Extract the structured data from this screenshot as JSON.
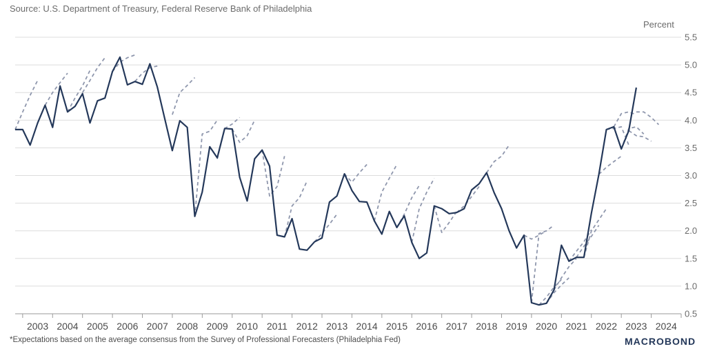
{
  "source": "Source: U.S. Department of Treasury, Federal Reserve Bank of Philadelphia",
  "footnote": "*Expectations based on the average consensus from the Survey of Professional Forecasters (Philadelphia Fed)",
  "brand": "MACROBOND",
  "colors": {
    "actual": "#24385a",
    "forecast": "#8f97ad",
    "grid": "#dcdcdc"
  },
  "chart_data": {
    "type": "line",
    "title": "",
    "xlabel": "",
    "ylabel": "Percent",
    "ylim": [
      0.5,
      5.5
    ],
    "y_ticks": [
      "5.5",
      "5.0",
      "4.5",
      "4.0",
      "3.5",
      "3.0",
      "2.5",
      "2.0",
      "1.5",
      "1.0",
      "0.5"
    ],
    "x_ticks": [
      "2003",
      "2004",
      "2005",
      "2006",
      "2007",
      "2008",
      "2009",
      "2010",
      "2011",
      "2012",
      "2013",
      "2014",
      "2015",
      "2016",
      "2017",
      "2018",
      "2019",
      "2020",
      "2021",
      "2022",
      "2023",
      "2024"
    ],
    "xlim": [
      2002.5,
      2024.75
    ],
    "grid": true,
    "legend": "none",
    "series": [
      {
        "style": "solid",
        "x": [
          2002.5,
          2002.75,
          2003.0,
          2003.25,
          2003.5,
          2003.75,
          2004.0,
          2004.25,
          2004.5,
          2004.75,
          2005.0,
          2005.25,
          2005.5,
          2005.75,
          2006.0,
          2006.25,
          2006.5,
          2006.75,
          2007.0,
          2007.25,
          2007.5,
          2007.75,
          2008.0,
          2008.25,
          2008.5,
          2008.75,
          2009.0,
          2009.25,
          2009.5,
          2009.75,
          2010.0,
          2010.25,
          2010.5,
          2010.75,
          2011.0,
          2011.25,
          2011.5,
          2011.75,
          2012.0,
          2012.25,
          2012.5,
          2012.75,
          2013.0,
          2013.25,
          2013.5,
          2013.75,
          2014.0,
          2014.25,
          2014.5,
          2014.75,
          2015.0,
          2015.25,
          2015.5,
          2015.75,
          2016.0,
          2016.25,
          2016.5,
          2016.75,
          2017.0,
          2017.25,
          2017.5,
          2017.75,
          2018.0,
          2018.25,
          2018.5,
          2018.75,
          2019.0,
          2019.25,
          2019.5,
          2019.75,
          2020.0,
          2020.25,
          2020.5,
          2020.75,
          2021.0,
          2021.25,
          2021.5,
          2021.75,
          2022.0,
          2022.25,
          2022.5,
          2022.75,
          2023.0,
          2023.25
        ],
        "values": [
          3.83,
          3.83,
          3.55,
          3.95,
          4.27,
          3.87,
          4.62,
          4.15,
          4.25,
          4.48,
          3.95,
          4.35,
          4.4,
          4.88,
          5.14,
          4.64,
          4.7,
          4.65,
          5.02,
          4.6,
          4.02,
          3.45,
          3.99,
          3.87,
          2.26,
          2.7,
          3.52,
          3.32,
          3.85,
          3.84,
          2.97,
          2.54,
          3.3,
          3.46,
          3.17,
          1.92,
          1.89,
          2.22,
          1.67,
          1.65,
          1.8,
          1.87,
          2.52,
          2.63,
          3.03,
          2.73,
          2.53,
          2.52,
          2.18,
          1.94,
          2.35,
          2.06,
          2.27,
          1.79,
          1.5,
          1.6,
          2.45,
          2.4,
          2.31,
          2.33,
          2.4,
          2.74,
          2.85,
          3.05,
          2.69,
          2.4,
          2.0,
          1.69,
          1.92,
          0.7,
          0.66,
          0.69,
          0.93,
          1.74,
          1.45,
          1.52,
          1.52,
          2.32,
          3.02,
          3.83,
          3.88,
          3.48,
          3.81,
          4.59
        ]
      },
      {
        "style": "dashed",
        "x": [
          2002.5,
          2002.75,
          2003.0,
          2003.25
        ],
        "values": [
          3.83,
          4.15,
          4.45,
          4.72
        ]
      },
      {
        "style": "dashed",
        "x": [
          2003.5,
          2003.75,
          2004.0,
          2004.25
        ],
        "values": [
          4.27,
          4.5,
          4.68,
          4.85
        ]
      },
      {
        "style": "dashed",
        "x": [
          2004.25,
          2004.5,
          2004.75,
          2005.0
        ],
        "values": [
          4.15,
          4.4,
          4.62,
          4.9
        ]
      },
      {
        "style": "dashed",
        "x": [
          2004.75,
          2005.0,
          2005.25,
          2005.5
        ],
        "values": [
          4.5,
          4.72,
          4.95,
          5.13
        ]
      },
      {
        "style": "dashed",
        "x": [
          2005.75,
          2006.0,
          2006.25,
          2006.5
        ],
        "values": [
          4.88,
          5.05,
          5.13,
          5.18
        ]
      },
      {
        "style": "dashed",
        "x": [
          2006.5,
          2006.75,
          2007.0,
          2007.25
        ],
        "values": [
          4.7,
          4.85,
          4.95,
          4.98
        ]
      },
      {
        "style": "dashed",
        "x": [
          2007.75,
          2008.0,
          2008.25,
          2008.5
        ],
        "values": [
          4.1,
          4.5,
          4.63,
          4.77
        ]
      },
      {
        "style": "dashed",
        "x": [
          2008.5,
          2008.75,
          2009.0,
          2009.25
        ],
        "values": [
          2.26,
          3.75,
          3.8,
          4.0
        ]
      },
      {
        "style": "dashed",
        "x": [
          2009.25,
          2009.5,
          2009.75,
          2010.0
        ],
        "values": [
          3.3,
          3.85,
          3.93,
          4.05
        ]
      },
      {
        "style": "dashed",
        "x": [
          2009.75,
          2010.0,
          2010.25,
          2010.5
        ],
        "values": [
          3.84,
          3.6,
          3.72,
          4.0
        ]
      },
      {
        "style": "dashed",
        "x": [
          2010.75,
          2011.0,
          2011.25,
          2011.5
        ],
        "values": [
          3.46,
          2.63,
          2.8,
          3.35
        ]
      },
      {
        "style": "dashed",
        "x": [
          2011.5,
          2011.75,
          2012.0,
          2012.25
        ],
        "values": [
          1.89,
          2.45,
          2.6,
          2.9
        ]
      },
      {
        "style": "dashed",
        "x": [
          2012.5,
          2012.75,
          2013.0,
          2013.25
        ],
        "values": [
          1.8,
          1.95,
          2.12,
          2.3
        ]
      },
      {
        "style": "dashed",
        "x": [
          2013.5,
          2013.75,
          2014.0,
          2014.25
        ],
        "values": [
          3.03,
          2.88,
          3.05,
          3.2
        ]
      },
      {
        "style": "dashed",
        "x": [
          2014.5,
          2014.75,
          2015.0,
          2015.25
        ],
        "values": [
          2.18,
          2.7,
          2.95,
          3.2
        ]
      },
      {
        "style": "dashed",
        "x": [
          2015.25,
          2015.5,
          2015.75,
          2016.0
        ],
        "values": [
          2.06,
          2.3,
          2.6,
          2.82
        ]
      },
      {
        "style": "dashed",
        "x": [
          2015.75,
          2016.0,
          2016.25,
          2016.5
        ],
        "values": [
          1.79,
          2.4,
          2.7,
          2.95
        ]
      },
      {
        "style": "dashed",
        "x": [
          2016.5,
          2016.75,
          2017.0,
          2017.25
        ],
        "values": [
          2.45,
          1.97,
          2.15,
          2.35
        ]
      },
      {
        "style": "dashed",
        "x": [
          2017.25,
          2017.5,
          2017.75,
          2018.0
        ],
        "values": [
          2.33,
          2.45,
          2.62,
          2.8
        ]
      },
      {
        "style": "dashed",
        "x": [
          2018.25,
          2018.5,
          2018.75,
          2019.0
        ],
        "values": [
          3.05,
          3.25,
          3.35,
          3.55
        ]
      },
      {
        "style": "dashed",
        "x": [
          2019.5,
          2019.75,
          2020.0,
          2020.25
        ],
        "values": [
          1.92,
          1.85,
          1.92,
          2.0
        ]
      },
      {
        "style": "dashed",
        "x": [
          2019.75,
          2020.0,
          2020.25,
          2020.5
        ],
        "values": [
          0.7,
          1.95,
          2.0,
          2.1
        ]
      },
      {
        "style": "dashed",
        "x": [
          2020.0,
          2020.25,
          2020.5,
          2020.75
        ],
        "values": [
          0.66,
          0.8,
          0.98,
          1.12
        ]
      },
      {
        "style": "dashed",
        "x": [
          2020.25,
          2020.5,
          2020.75,
          2021.0
        ],
        "values": [
          0.69,
          0.88,
          1.02,
          1.15
        ]
      },
      {
        "style": "dashed",
        "x": [
          2020.5,
          2020.75,
          2021.0,
          2021.25
        ],
        "values": [
          0.93,
          1.15,
          1.35,
          1.5
        ]
      },
      {
        "style": "dashed",
        "x": [
          2021.0,
          2021.25,
          2021.5,
          2021.75
        ],
        "values": [
          1.45,
          1.63,
          1.8,
          2.02
        ]
      },
      {
        "style": "dashed",
        "x": [
          2021.25,
          2021.5,
          2021.75,
          2022.0
        ],
        "values": [
          1.52,
          1.72,
          1.9,
          2.1
        ]
      },
      {
        "style": "dashed",
        "x": [
          2021.5,
          2021.75,
          2022.0,
          2022.25
        ],
        "values": [
          1.52,
          2.0,
          2.2,
          2.4
        ]
      },
      {
        "style": "dashed",
        "x": [
          2022.0,
          2022.25,
          2022.5,
          2022.75
        ],
        "values": [
          3.02,
          3.15,
          3.25,
          3.35
        ]
      },
      {
        "style": "dashed",
        "x": [
          2022.25,
          2022.5,
          2022.75,
          2023.0
        ],
        "values": [
          3.83,
          3.85,
          3.88,
          3.55
        ]
      },
      {
        "style": "dashed",
        "x": [
          2022.5,
          2022.75,
          2023.0,
          2023.25
        ],
        "values": [
          3.88,
          4.12,
          4.15,
          4.1
        ]
      },
      {
        "style": "dashed",
        "x": [
          2022.75,
          2023.0,
          2023.25,
          2023.5
        ],
        "values": [
          3.48,
          3.85,
          3.88,
          3.75
        ]
      },
      {
        "style": "dashed",
        "x": [
          2023.0,
          2023.25,
          2023.5,
          2023.75
        ],
        "values": [
          3.81,
          3.72,
          3.7,
          3.62
        ]
      },
      {
        "style": "dashed",
        "x": [
          2023.25,
          2023.5,
          2023.75,
          2024.0
        ],
        "values": [
          4.15,
          4.15,
          4.05,
          3.92
        ]
      }
    ]
  }
}
